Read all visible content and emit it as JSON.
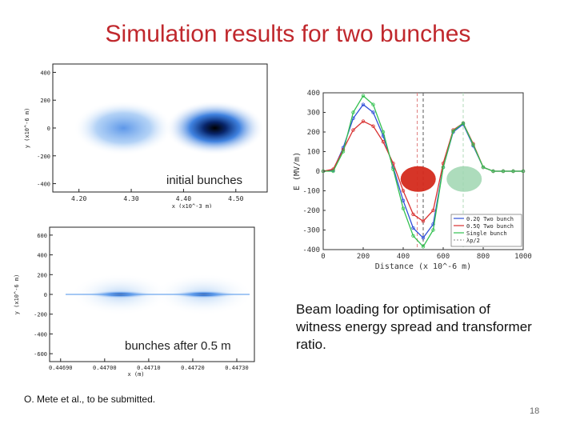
{
  "slide": {
    "title": "Simulation results for two bunches",
    "caption_initial": "initial bunches",
    "caption_after": "bunches after 0.5 m",
    "description": "Beam loading for optimisation of witness energy spread and transformer ratio.",
    "credit": "O. Mete et al., to be submitted.",
    "page_number": "18"
  },
  "colors": {
    "title": "#c0282d",
    "bunch_blue": "#0a5fd6",
    "series_02Q": "#2f4fd8",
    "series_05Q": "#d83030",
    "series_single": "#33c050",
    "drive_bunch": "#d42a1c",
    "witness_bunch": "#9fd6b0"
  },
  "chart_data": [
    {
      "type": "heatmap",
      "subtitle": "initial bunches",
      "xlabel": "x (x10^-3 m)",
      "ylabel": "y (x10^-6 m)",
      "x_ticks": [
        "4.20",
        "4.30",
        "4.40",
        "4.50"
      ],
      "y_ticks": [
        "400",
        "200",
        "0",
        "-200",
        "-400"
      ],
      "xlim": [
        4.15,
        4.56
      ],
      "ylim": [
        -460,
        460
      ],
      "bunches": [
        {
          "x_center": 4.285,
          "y_center": 0,
          "peak_intensity": 0.62
        },
        {
          "x_center": 4.46,
          "y_center": 0,
          "peak_intensity": 1.0
        }
      ]
    },
    {
      "type": "heatmap",
      "subtitle": "bunches after 0.5 m",
      "xlabel": "x (m)",
      "ylabel": "y (x10^-6 m)",
      "x_ticks": [
        "0.44690",
        "0.44700",
        "0.44710",
        "0.44720",
        "0.44730"
      ],
      "y_ticks": [
        "600",
        "400",
        "200",
        "0",
        "-200",
        "-400",
        "-600"
      ],
      "xlim": [
        0.446875,
        0.44734
      ],
      "ylim": [
        -680,
        680
      ],
      "bunches": [
        {
          "x_center": 0.447035,
          "y_center": 0,
          "peak_intensity": 0.9
        },
        {
          "x_center": 0.447225,
          "y_center": 0,
          "peak_intensity": 1.0
        }
      ]
    },
    {
      "type": "line",
      "xlabel": "Distance (x 10^-6 m)",
      "ylabel": "E (MV/m)",
      "xlim": [
        0,
        1000
      ],
      "ylim": [
        -400,
        400
      ],
      "x_ticks": [
        0,
        200,
        400,
        600,
        800,
        1000
      ],
      "y_ticks": [
        400,
        300,
        200,
        100,
        0,
        -100,
        -200,
        -300,
        -400
      ],
      "grid": false,
      "legend": {
        "placement": "bottom-right",
        "extra_entry": "λp/2"
      },
      "x": [
        0,
        50,
        100,
        150,
        200,
        250,
        300,
        350,
        400,
        450,
        500,
        550,
        600,
        650,
        700,
        750,
        800,
        850,
        900,
        950,
        1000
      ],
      "series": [
        {
          "name": "0.2Q Two bunch",
          "color": "#2f4fd8",
          "values": [
            0,
            5,
            120,
            270,
            340,
            300,
            180,
            20,
            -150,
            -290,
            -340,
            -270,
            20,
            200,
            240,
            130,
            20,
            0,
            0,
            0,
            0
          ]
        },
        {
          "name": "0.5Q Two bunch",
          "color": "#d83030",
          "values": [
            0,
            10,
            110,
            210,
            255,
            230,
            150,
            40,
            -100,
            -220,
            -255,
            -200,
            40,
            210,
            245,
            140,
            20,
            0,
            0,
            0,
            0
          ]
        },
        {
          "name": "Single bunch",
          "color": "#33c050",
          "values": [
            0,
            0,
            100,
            300,
            385,
            340,
            200,
            10,
            -190,
            -330,
            -385,
            -300,
            20,
            205,
            245,
            135,
            20,
            0,
            0,
            0,
            0
          ]
        }
      ],
      "markers": [
        {
          "label": "",
          "x": 470,
          "style": "dashed",
          "color": "#e08080"
        },
        {
          "label": "",
          "x": 500,
          "style": "dashed",
          "color": "#5a5a5a"
        },
        {
          "label": "",
          "x": 700,
          "style": "dashed",
          "color": "#b0d8b8"
        }
      ],
      "bunch_ellipses": [
        {
          "x": 475,
          "y": -40,
          "color": "#d42a1c"
        },
        {
          "x": 705,
          "y": -40,
          "color": "#9fd6b0"
        }
      ]
    }
  ]
}
